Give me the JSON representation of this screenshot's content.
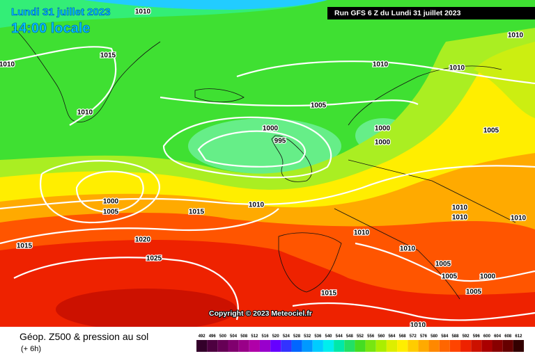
{
  "header": {
    "date": "Lundi 31 juillet 2023",
    "time": "14:00 locale",
    "run": "Run GFS 6 Z du Lundi 31 juillet 2023"
  },
  "copyright": "Copyright © 2023 Meteociel.fr",
  "footer": {
    "title": "Géop. Z500 & pression au sol",
    "lead": "(+ 6h)"
  },
  "isobar_labels": [
    "1010",
    "1010",
    "1015",
    "1010",
    "1010",
    "1010",
    "1005",
    "1010",
    "1005",
    "1000",
    "1000",
    "995",
    "1000",
    "1000",
    "1005",
    "1010",
    "1015",
    "1010",
    "1010",
    "1010",
    "1020",
    "1015",
    "1010",
    "1025",
    "1005",
    "1000",
    "1005",
    "1005",
    "1015",
    "1010",
    "1010"
  ],
  "legend": {
    "values": [
      492,
      496,
      500,
      504,
      508,
      512,
      516,
      520,
      524,
      528,
      532,
      536,
      540,
      544,
      548,
      552,
      556,
      560,
      564,
      568,
      572,
      576,
      580,
      584,
      588,
      592,
      596,
      600,
      604,
      608,
      612
    ],
    "colors": [
      "#33002a",
      "#4d0040",
      "#660055",
      "#80006e",
      "#990088",
      "#b000a8",
      "#9900cc",
      "#6600ff",
      "#3333ff",
      "#0066ff",
      "#0099ff",
      "#00ccff",
      "#00eeee",
      "#00e8aa",
      "#22e066",
      "#44dd22",
      "#77e611",
      "#aaee00",
      "#ddee00",
      "#ffee00",
      "#ffcc00",
      "#ffaa00",
      "#ff8800",
      "#ff6600",
      "#ff4400",
      "#ee2200",
      "#cc1100",
      "#aa0000",
      "#880000",
      "#660000",
      "#330000"
    ]
  }
}
